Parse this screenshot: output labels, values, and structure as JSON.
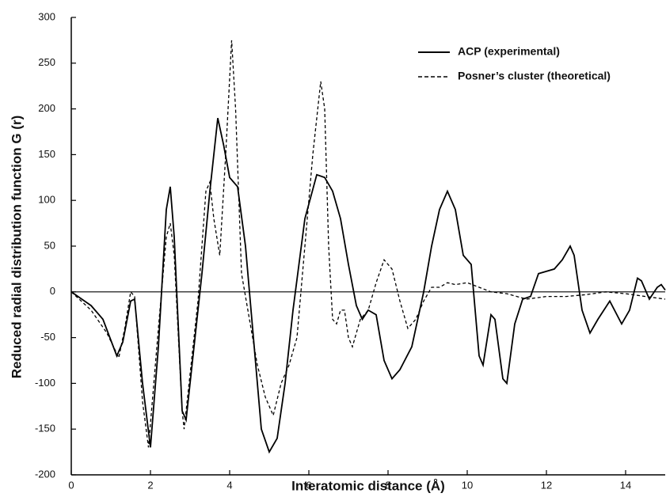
{
  "chart_data": {
    "type": "line",
    "x_label": "Interatomic distance  (Å)",
    "y_label": "Reduced radial distribution function G (r)",
    "xlim": [
      0,
      15
    ],
    "xticks": [
      0,
      2,
      4,
      6,
      8,
      10,
      12,
      14
    ],
    "ylim": [
      -200,
      300
    ],
    "yticks": [
      -200,
      -150,
      -100,
      -50,
      0,
      50,
      100,
      150,
      200,
      250,
      300
    ],
    "legend": "upper right",
    "series": [
      {
        "name": "ACP (experimental)",
        "color": "#000000",
        "line_style": "solid",
        "x": [
          0,
          0.5,
          0.8,
          1.15,
          1.3,
          1.5,
          1.6,
          1.8,
          2.0,
          2.2,
          2.4,
          2.5,
          2.6,
          2.8,
          2.9,
          3.1,
          3.3,
          3.5,
          3.7,
          3.85,
          4.0,
          4.2,
          4.4,
          4.6,
          4.8,
          5.0,
          5.2,
          5.4,
          5.6,
          5.9,
          6.2,
          6.4,
          6.6,
          6.8,
          7.0,
          7.2,
          7.35,
          7.5,
          7.7,
          7.9,
          8.1,
          8.3,
          8.6,
          8.9,
          9.1,
          9.3,
          9.5,
          9.7,
          9.9,
          10.1,
          10.3,
          10.4,
          10.6,
          10.7,
          10.9,
          11.0,
          11.2,
          11.4,
          11.6,
          11.8,
          12.2,
          12.4,
          12.6,
          12.7,
          12.9,
          13.1,
          13.3,
          13.6,
          13.9,
          14.1,
          14.3,
          14.4,
          14.6,
          14.8,
          14.9,
          15
        ],
        "values": [
          0,
          -15,
          -30,
          -70,
          -55,
          -10,
          -8,
          -100,
          -170,
          -60,
          90,
          115,
          60,
          -130,
          -140,
          -60,
          20,
          110,
          190,
          160,
          125,
          115,
          50,
          -50,
          -150,
          -175,
          -160,
          -100,
          -20,
          80,
          128,
          125,
          110,
          80,
          30,
          -15,
          -30,
          -20,
          -25,
          -75,
          -95,
          -85,
          -60,
          0,
          50,
          90,
          110,
          90,
          40,
          30,
          -70,
          -80,
          -25,
          -30,
          -95,
          -100,
          -35,
          -8,
          -5,
          20,
          25,
          35,
          50,
          40,
          -20,
          -45,
          -30,
          -10,
          -35,
          -20,
          15,
          12,
          -8,
          5,
          8,
          2
        ]
      },
      {
        "name": "Posner’s cluster (theoretical)",
        "color": "#000000",
        "line_style": "dashed",
        "x": [
          0,
          0.5,
          0.9,
          1.2,
          1.35,
          1.5,
          1.6,
          1.8,
          1.95,
          2.2,
          2.4,
          2.5,
          2.6,
          2.8,
          2.85,
          3.0,
          3.2,
          3.4,
          3.5,
          3.6,
          3.75,
          3.9,
          4.05,
          4.15,
          4.3,
          4.5,
          4.7,
          4.9,
          5.1,
          5.3,
          5.5,
          5.7,
          5.9,
          6.1,
          6.3,
          6.4,
          6.5,
          6.6,
          6.7,
          6.8,
          6.9,
          7.0,
          7.1,
          7.3,
          7.5,
          7.7,
          7.9,
          8.1,
          8.3,
          8.5,
          8.7,
          8.9,
          9.1,
          9.3,
          9.5,
          9.7,
          10.0,
          10.3,
          10.6,
          11.0,
          11.5,
          12,
          12.5,
          13,
          13.5,
          14,
          14.5,
          15
        ],
        "values": [
          0,
          -20,
          -45,
          -72,
          -40,
          0,
          -5,
          -120,
          -170,
          -40,
          60,
          75,
          40,
          -130,
          -150,
          -90,
          -10,
          110,
          120,
          80,
          40,
          150,
          275,
          200,
          20,
          -30,
          -80,
          -115,
          -135,
          -100,
          -80,
          -50,
          50,
          150,
          230,
          200,
          50,
          -30,
          -35,
          -20,
          -20,
          -50,
          -60,
          -30,
          -20,
          10,
          35,
          25,
          -10,
          -40,
          -30,
          -10,
          5,
          5,
          10,
          8,
          10,
          5,
          0,
          -2,
          -8,
          -5,
          -5,
          -3,
          0,
          -2,
          -5,
          -8
        ]
      }
    ]
  }
}
